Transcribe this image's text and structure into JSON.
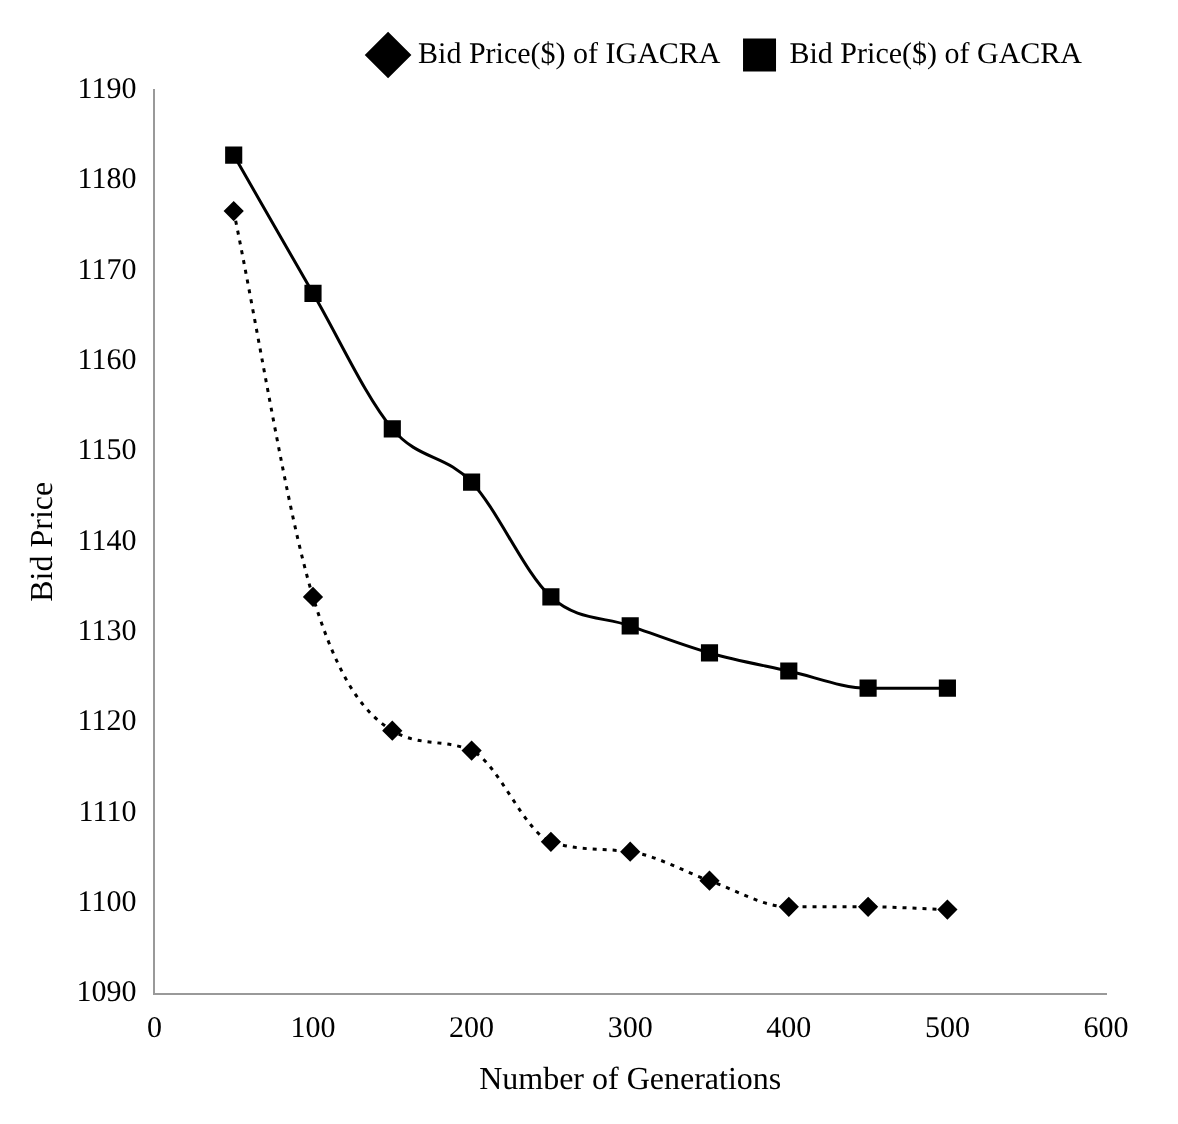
{
  "chart_data": {
    "type": "line",
    "xlabel": "Number of Generations",
    "ylabel": "Bid Price",
    "x": [
      50,
      100,
      150,
      200,
      250,
      300,
      350,
      400,
      450,
      500
    ],
    "series": [
      {
        "name": "Bid Price($) of IGACRA",
        "color": "#000000",
        "marker": "diamond",
        "line_style": "dotted",
        "values": [
          1176.6,
          1133.9,
          1119.1,
          1116.9,
          1106.8,
          1105.7,
          1102.5,
          1099.6,
          1099.6,
          1099.3
        ]
      },
      {
        "name": "Bid Price($) of GACRA",
        "color": "#000000",
        "marker": "square",
        "line_style": "solid",
        "values": [
          1182.8,
          1167.5,
          1152.5,
          1146.6,
          1133.9,
          1130.7,
          1127.7,
          1125.7,
          1123.8,
          1123.8
        ]
      }
    ],
    "xlim": [
      0,
      600
    ],
    "xticks": [
      0,
      100,
      200,
      300,
      400,
      500,
      600
    ],
    "ylim": [
      1090,
      1190
    ],
    "yticks": [
      1090,
      1100,
      1110,
      1120,
      1130,
      1140,
      1150,
      1160,
      1170,
      1180,
      1190
    ],
    "grid": false,
    "legend": "top right"
  }
}
